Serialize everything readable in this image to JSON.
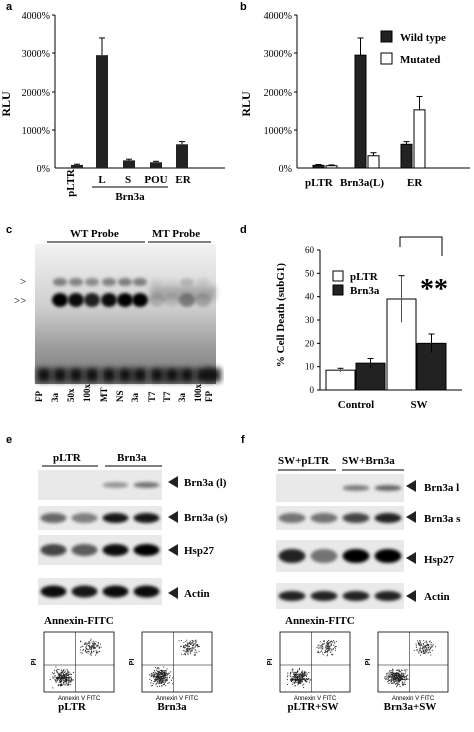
{
  "panels": {
    "a": {
      "letter": "a",
      "chart_data": {
        "type": "bar",
        "ylabel": "RLU",
        "ylim": [
          0,
          4000
        ],
        "yticks": [
          "4000%",
          "3000%",
          "2000%",
          "1000%",
          "0%"
        ],
        "categories": [
          "pLTR",
          "L",
          "S",
          "POU",
          "ER"
        ],
        "group_label": "Brn3a",
        "values": [
          80,
          2950,
          200,
          150,
          620
        ],
        "errors": [
          20,
          450,
          30,
          25,
          70
        ]
      }
    },
    "b": {
      "letter": "b",
      "chart_data": {
        "type": "bar",
        "ylabel": "RLU",
        "ylim": [
          0,
          4000
        ],
        "yticks": [
          "4000%",
          "3000%",
          "2000%",
          "1000%",
          "0%"
        ],
        "categories": [
          "pLTR",
          "Brn3a(L)",
          "ER"
        ],
        "legend": [
          "Wild type",
          "Mutated"
        ],
        "series": [
          {
            "name": "Wild type",
            "values": [
              70,
              2950,
              620
            ],
            "errors": [
              20,
              450,
              70
            ]
          },
          {
            "name": "Mutated",
            "values": [
              60,
              320,
              1520
            ],
            "errors": [
              20,
              80,
              350
            ]
          }
        ]
      }
    },
    "c": {
      "letter": "c",
      "probe_labels": [
        "WT Probe",
        "MT Probe"
      ],
      "arrow_labels": [
        ">",
        ">>"
      ],
      "lanes": [
        "FP",
        "3a",
        "50x",
        "100x",
        "MT",
        "NS",
        "3a",
        "T7",
        "T7",
        "3a",
        "100x",
        "FP"
      ]
    },
    "d": {
      "letter": "d",
      "chart_data": {
        "type": "bar",
        "ylabel": "% Cell Death (subG1)",
        "ylim": [
          0,
          60
        ],
        "yticks": [
          "0",
          "10",
          "20",
          "30",
          "40",
          "50",
          "60"
        ],
        "categories": [
          "Control",
          "SW"
        ],
        "legend": [
          "pLTR",
          "Brn3a"
        ],
        "series": [
          {
            "name": "pLTR",
            "values": [
              8.5,
              39
            ],
            "errors": [
              0.8,
              10
            ]
          },
          {
            "name": "Brn3a",
            "values": [
              11.5,
              20
            ],
            "errors": [
              2,
              4
            ]
          }
        ],
        "annotation": "**"
      }
    },
    "e": {
      "letter": "e",
      "groups": [
        "pLTR",
        "Brn3a"
      ],
      "bands": [
        "Brn3a (l)",
        "Brn3a (s)",
        "Hsp27",
        "Actin"
      ],
      "flow_title": "Annexin-FITC",
      "flow_ylabel": "PI",
      "flow_xlabel": "Annexin V FITC",
      "flow_labels": [
        "pLTR",
        "Brn3a"
      ]
    },
    "f": {
      "letter": "f",
      "groups": [
        "SW+pLTR",
        "SW+Brn3a"
      ],
      "bands": [
        "Brn3a l",
        "Brn3a s",
        "Hsp27",
        "Actin"
      ],
      "flow_title": "Annexin-FITC",
      "flow_ylabel": "PI",
      "flow_xlabel": "Annexin V FITC",
      "flow_labels": [
        "pLTR+SW",
        "Brn3a+SW"
      ]
    }
  }
}
